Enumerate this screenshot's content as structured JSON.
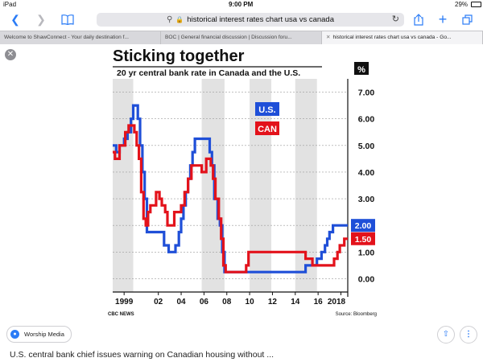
{
  "status_bar": {
    "device": "iPad",
    "time": "9:00 PM",
    "battery": "29%"
  },
  "toolbar": {
    "search_query": "historical interest rates chart usa vs canada"
  },
  "tabs": [
    {
      "title": "Welcome to ShawConnect - Your daily destination f..."
    },
    {
      "title": "BOC | General financial discussion | Discussion foru..."
    },
    {
      "title": "historical interest rates chart usa vs canada - Go..."
    }
  ],
  "image_viewer": {
    "source_name": "Worship Media",
    "caption": "U.S. central bank chief issues warning on Canadian housing without ..."
  },
  "chart_data": {
    "type": "line",
    "title": "Sticking together",
    "subtitle": "20 yr central bank rate in Canada and the U.S.",
    "unit_label": "%",
    "x_tick_labels": [
      "1999",
      "02",
      "04",
      "06",
      "08",
      "10",
      "12",
      "14",
      "16",
      "2018"
    ],
    "x_ticks": [
      1999,
      2002,
      2004,
      2006,
      2008,
      2010,
      2012,
      2014,
      2016,
      2018
    ],
    "xlim": [
      1998,
      2018.6
    ],
    "ylim": [
      -0.5,
      7.5
    ],
    "y_ticks": [
      0,
      1,
      2,
      3,
      4,
      5,
      6,
      7
    ],
    "y_tick_labels": [
      "0.00",
      "1.00",
      "2.00",
      "3.00",
      "4.00",
      "5.00",
      "6.00",
      "7.00"
    ],
    "shaded_bands": [
      [
        1998,
        1999.8
      ],
      [
        2005.8,
        2007.8
      ],
      [
        2010,
        2011.9
      ],
      [
        2014,
        2015.9
      ]
    ],
    "legend": [
      {
        "label": "U.S.",
        "color": "#1f4fd8"
      },
      {
        "label": "CAN",
        "color": "#e3121b"
      }
    ],
    "end_labels": [
      {
        "series": "U.S.",
        "text": "2.00",
        "color": "#1f4fd8"
      },
      {
        "series": "CAN",
        "text": "1.50",
        "color": "#e3121b"
      }
    ],
    "footer_left": "CBC NEWS",
    "footer_right": "Source: Bloomberg",
    "series": [
      {
        "name": "U.S.",
        "color": "#1f4fd8",
        "points": [
          [
            1998,
            5.0
          ],
          [
            1998.3,
            5.0
          ],
          [
            1998.3,
            4.75
          ],
          [
            1998.6,
            4.75
          ],
          [
            1998.6,
            5.0
          ],
          [
            1999,
            5.0
          ],
          [
            1999,
            5.25
          ],
          [
            1999.3,
            5.25
          ],
          [
            1999.3,
            5.5
          ],
          [
            1999.6,
            5.5
          ],
          [
            1999.6,
            6.0
          ],
          [
            1999.8,
            6.0
          ],
          [
            1999.8,
            6.5
          ],
          [
            2000.2,
            6.5
          ],
          [
            2000.2,
            6.0
          ],
          [
            2000.4,
            6.0
          ],
          [
            2000.4,
            5.0
          ],
          [
            2000.6,
            5.0
          ],
          [
            2000.6,
            4.0
          ],
          [
            2000.8,
            4.0
          ],
          [
            2000.8,
            3.0
          ],
          [
            2001,
            3.0
          ],
          [
            2001,
            1.75
          ],
          [
            2002.5,
            1.75
          ],
          [
            2002.5,
            1.25
          ],
          [
            2002.9,
            1.25
          ],
          [
            2002.9,
            1.0
          ],
          [
            2003.5,
            1.0
          ],
          [
            2003.5,
            1.25
          ],
          [
            2003.8,
            1.25
          ],
          [
            2003.8,
            1.75
          ],
          [
            2004,
            1.75
          ],
          [
            2004,
            2.25
          ],
          [
            2004.2,
            2.25
          ],
          [
            2004.2,
            2.75
          ],
          [
            2004.4,
            2.75
          ],
          [
            2004.4,
            3.25
          ],
          [
            2004.6,
            3.25
          ],
          [
            2004.6,
            3.75
          ],
          [
            2004.8,
            3.75
          ],
          [
            2004.8,
            4.25
          ],
          [
            2005,
            4.25
          ],
          [
            2005,
            4.75
          ],
          [
            2005.2,
            4.75
          ],
          [
            2005.2,
            5.25
          ],
          [
            2006.5,
            5.25
          ],
          [
            2006.5,
            4.75
          ],
          [
            2006.7,
            4.75
          ],
          [
            2006.7,
            4.25
          ],
          [
            2006.9,
            4.25
          ],
          [
            2006.9,
            3.0
          ],
          [
            2007.2,
            3.0
          ],
          [
            2007.2,
            2.25
          ],
          [
            2007.4,
            2.25
          ],
          [
            2007.4,
            2.0
          ],
          [
            2007.6,
            2.0
          ],
          [
            2007.6,
            1.0
          ],
          [
            2007.8,
            1.0
          ],
          [
            2007.8,
            0.25
          ],
          [
            2014.9,
            0.25
          ],
          [
            2014.9,
            0.5
          ],
          [
            2015.9,
            0.5
          ],
          [
            2015.9,
            0.75
          ],
          [
            2016.3,
            0.75
          ],
          [
            2016.3,
            1.0
          ],
          [
            2016.6,
            1.0
          ],
          [
            2016.6,
            1.25
          ],
          [
            2016.8,
            1.25
          ],
          [
            2016.8,
            1.5
          ],
          [
            2017,
            1.5
          ],
          [
            2017,
            1.75
          ],
          [
            2017.3,
            1.75
          ],
          [
            2017.3,
            2.0
          ],
          [
            2018.6,
            2.0
          ]
        ]
      },
      {
        "name": "CAN",
        "color": "#e3121b",
        "points": [
          [
            1998,
            4.75
          ],
          [
            1998.2,
            4.75
          ],
          [
            1998.2,
            4.5
          ],
          [
            1998.6,
            4.5
          ],
          [
            1998.6,
            5.0
          ],
          [
            1999.1,
            5.0
          ],
          [
            1999.1,
            5.5
          ],
          [
            1999.4,
            5.5
          ],
          [
            1999.4,
            5.75
          ],
          [
            1999.9,
            5.75
          ],
          [
            1999.9,
            5.5
          ],
          [
            2000.1,
            5.5
          ],
          [
            2000.1,
            5.0
          ],
          [
            2000.3,
            5.0
          ],
          [
            2000.3,
            4.5
          ],
          [
            2000.5,
            4.5
          ],
          [
            2000.5,
            3.25
          ],
          [
            2000.7,
            3.25
          ],
          [
            2000.7,
            2.25
          ],
          [
            2000.9,
            2.25
          ],
          [
            2000.9,
            2.0
          ],
          [
            2001.1,
            2.0
          ],
          [
            2001.1,
            2.5
          ],
          [
            2001.3,
            2.5
          ],
          [
            2001.3,
            2.75
          ],
          [
            2001.8,
            2.75
          ],
          [
            2001.8,
            3.25
          ],
          [
            2002.1,
            3.25
          ],
          [
            2002.1,
            3.0
          ],
          [
            2002.3,
            3.0
          ],
          [
            2002.3,
            2.75
          ],
          [
            2002.6,
            2.75
          ],
          [
            2002.6,
            2.5
          ],
          [
            2002.8,
            2.5
          ],
          [
            2002.8,
            2.0
          ],
          [
            2003.4,
            2.0
          ],
          [
            2003.4,
            2.5
          ],
          [
            2004,
            2.5
          ],
          [
            2004,
            2.75
          ],
          [
            2004.3,
            2.75
          ],
          [
            2004.3,
            3.25
          ],
          [
            2004.6,
            3.25
          ],
          [
            2004.6,
            3.75
          ],
          [
            2004.9,
            3.75
          ],
          [
            2004.9,
            4.25
          ],
          [
            2005.8,
            4.25
          ],
          [
            2005.8,
            4.0
          ],
          [
            2006.2,
            4.0
          ],
          [
            2006.2,
            4.5
          ],
          [
            2006.6,
            4.5
          ],
          [
            2006.6,
            4.25
          ],
          [
            2006.8,
            4.25
          ],
          [
            2006.8,
            3.75
          ],
          [
            2007,
            3.75
          ],
          [
            2007,
            3.0
          ],
          [
            2007.3,
            3.0
          ],
          [
            2007.3,
            2.25
          ],
          [
            2007.5,
            2.25
          ],
          [
            2007.5,
            1.5
          ],
          [
            2007.7,
            1.5
          ],
          [
            2007.7,
            0.5
          ],
          [
            2007.9,
            0.5
          ],
          [
            2007.9,
            0.25
          ],
          [
            2009.7,
            0.25
          ],
          [
            2009.7,
            0.5
          ],
          [
            2009.9,
            0.5
          ],
          [
            2009.9,
            1.0
          ],
          [
            2014.9,
            1.0
          ],
          [
            2014.9,
            0.75
          ],
          [
            2015.5,
            0.75
          ],
          [
            2015.5,
            0.5
          ],
          [
            2017.4,
            0.5
          ],
          [
            2017.4,
            0.75
          ],
          [
            2017.7,
            0.75
          ],
          [
            2017.7,
            1.0
          ],
          [
            2017.9,
            1.0
          ],
          [
            2017.9,
            1.25
          ],
          [
            2018.3,
            1.25
          ],
          [
            2018.3,
            1.5
          ],
          [
            2018.6,
            1.5
          ]
        ]
      }
    ]
  }
}
